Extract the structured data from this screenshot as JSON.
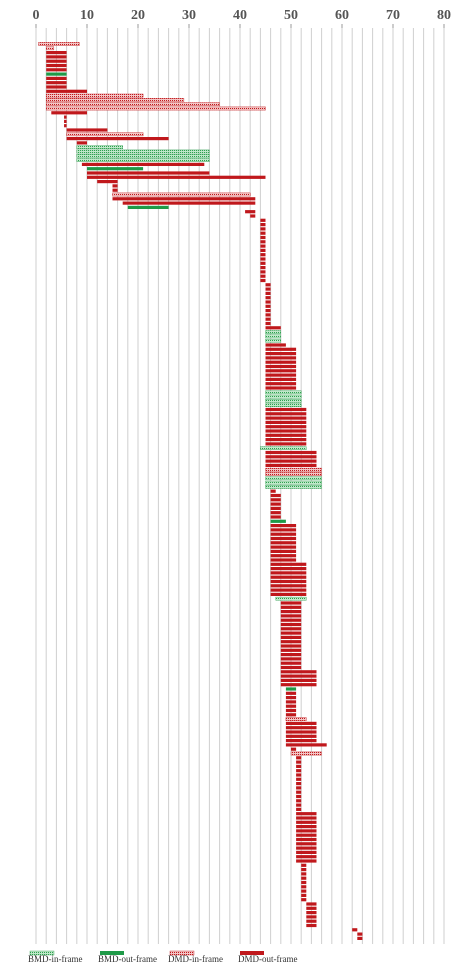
{
  "chart_data": {
    "type": "floating-bar",
    "xlim": [
      0,
      80
    ],
    "xticks": [
      0,
      10,
      20,
      30,
      40,
      50,
      60,
      70,
      80
    ],
    "grid": true,
    "grid_step": 2,
    "legend": "bottom",
    "series": [
      {
        "name": "BMD-in-frame",
        "color": "#2e9e4e",
        "pattern": "dotted",
        "rows": [
          24,
          25,
          26,
          27,
          67,
          68,
          69,
          81,
          82,
          83,
          84,
          94,
          101,
          102,
          103,
          129
        ],
        "values": [
          [
            8,
            17
          ],
          [
            8,
            34
          ],
          [
            8,
            34
          ],
          [
            8,
            34
          ],
          [
            45,
            48
          ],
          [
            45,
            48
          ],
          [
            45,
            48
          ],
          [
            45,
            52
          ],
          [
            45,
            52
          ],
          [
            45,
            52
          ],
          [
            45,
            52
          ],
          [
            44,
            53
          ],
          [
            45,
            56
          ],
          [
            45,
            56
          ],
          [
            45,
            56
          ],
          [
            47,
            53
          ]
        ]
      },
      {
        "name": "BMD-out-frame",
        "color": "#1f9a48",
        "pattern": "solid",
        "rows": [
          7,
          29,
          38,
          111,
          150
        ],
        "values": [
          [
            2,
            6
          ],
          [
            10,
            21
          ],
          [
            18,
            26
          ],
          [
            46,
            49
          ],
          [
            49,
            51
          ]
        ]
      },
      {
        "name": "DMD-in-frame",
        "color": "#c0181c",
        "pattern": "dotted",
        "rows": [
          0,
          1,
          12,
          13,
          14,
          15,
          21,
          35,
          99,
          100,
          157,
          165
        ],
        "values": [
          [
            0.5,
            8.5
          ],
          [
            2,
            3.5
          ],
          [
            2,
            21
          ],
          [
            2,
            29
          ],
          [
            2,
            36
          ],
          [
            2,
            45
          ],
          [
            6,
            21
          ],
          [
            15,
            42
          ],
          [
            45,
            56
          ],
          [
            45,
            56
          ],
          [
            49,
            53
          ],
          [
            50,
            56
          ]
        ]
      },
      {
        "name": "DMD-out-frame",
        "color": "#c0181c",
        "pattern": "solid",
        "rows": [
          2,
          3,
          4,
          5,
          6,
          8,
          9,
          10,
          11,
          16,
          17,
          18,
          19,
          20,
          22,
          23,
          28,
          30,
          31,
          32,
          33,
          34,
          36,
          37,
          39,
          40,
          41,
          42,
          43,
          44,
          45,
          46,
          47,
          48,
          49,
          50,
          51,
          52,
          53,
          54,
          55,
          56,
          57,
          58,
          59,
          60,
          61,
          62,
          63,
          64,
          65,
          66,
          70,
          71,
          72,
          73,
          74,
          75,
          76,
          77,
          78,
          79,
          80,
          85,
          86,
          87,
          88,
          89,
          90,
          91,
          92,
          93,
          95,
          96,
          97,
          98,
          104,
          105,
          106,
          107,
          108,
          109,
          110,
          112,
          113,
          114,
          115,
          116,
          117,
          118,
          119,
          120,
          121,
          122,
          123,
          124,
          125,
          126,
          127,
          128,
          130,
          131,
          132,
          133,
          134,
          135,
          136,
          137,
          138,
          139,
          140,
          141,
          142,
          143,
          144,
          145,
          146,
          147,
          148,
          149,
          151,
          152,
          153,
          154,
          155,
          156,
          158,
          159,
          160,
          161,
          162,
          163,
          164,
          166,
          167,
          168,
          169,
          170,
          171,
          172,
          173,
          174,
          175,
          176,
          177,
          178,
          179,
          180,
          181,
          182,
          183,
          184,
          185,
          186,
          187,
          188,
          189,
          190,
          191,
          192,
          193,
          194,
          195,
          196,
          197,
          198,
          199,
          200,
          201,
          202,
          203,
          204,
          205,
          206,
          207,
          208
        ],
        "values": [
          [
            2,
            6
          ],
          [
            2,
            6
          ],
          [
            2,
            6
          ],
          [
            2,
            6
          ],
          [
            2,
            6
          ],
          [
            2,
            6
          ],
          [
            2,
            6
          ],
          [
            2,
            6
          ],
          [
            2,
            10
          ],
          [
            3,
            10
          ],
          [
            5.5,
            6
          ],
          [
            5.5,
            6
          ],
          [
            5.5,
            6
          ],
          [
            6,
            14
          ],
          [
            6,
            26
          ],
          [
            8,
            10
          ],
          [
            9,
            33
          ],
          [
            10,
            34
          ],
          [
            10,
            45
          ],
          [
            12,
            16
          ],
          [
            15,
            16
          ],
          [
            15,
            16
          ],
          [
            15,
            43
          ],
          [
            17,
            43
          ],
          [
            41,
            43
          ],
          [
            42,
            43
          ],
          [
            44,
            45
          ],
          [
            44,
            45
          ],
          [
            44,
            45
          ],
          [
            44,
            45
          ],
          [
            44,
            45
          ],
          [
            44,
            45
          ],
          [
            44,
            45
          ],
          [
            44,
            45
          ],
          [
            44,
            45
          ],
          [
            44,
            45
          ],
          [
            44,
            45
          ],
          [
            44,
            45
          ],
          [
            44,
            45
          ],
          [
            44,
            45
          ],
          [
            44,
            45
          ],
          [
            45,
            46
          ],
          [
            45,
            46
          ],
          [
            45,
            46
          ],
          [
            45,
            46
          ],
          [
            45,
            46
          ],
          [
            45,
            46
          ],
          [
            45,
            46
          ],
          [
            45,
            46
          ],
          [
            45,
            46
          ],
          [
            45,
            46
          ],
          [
            45,
            48
          ],
          [
            45,
            49
          ],
          [
            45,
            51
          ],
          [
            45,
            51
          ],
          [
            45,
            51
          ],
          [
            45,
            51
          ],
          [
            45,
            51
          ],
          [
            45,
            51
          ],
          [
            45,
            51
          ],
          [
            45,
            51
          ],
          [
            45,
            51
          ],
          [
            45,
            51
          ],
          [
            45,
            53
          ],
          [
            45,
            53
          ],
          [
            45,
            53
          ],
          [
            45,
            53
          ],
          [
            45,
            53
          ],
          [
            45,
            53
          ],
          [
            45,
            53
          ],
          [
            45,
            53
          ],
          [
            45,
            53
          ],
          [
            45,
            55
          ],
          [
            45,
            55
          ],
          [
            45,
            55
          ],
          [
            45,
            55
          ],
          [
            46,
            47
          ],
          [
            46,
            48
          ],
          [
            46,
            48
          ],
          [
            46,
            48
          ],
          [
            46,
            48
          ],
          [
            46,
            48
          ],
          [
            46,
            48
          ],
          [
            46,
            51
          ],
          [
            46,
            51
          ],
          [
            46,
            51
          ],
          [
            46,
            51
          ],
          [
            46,
            51
          ],
          [
            46,
            51
          ],
          [
            46,
            51
          ],
          [
            46,
            51
          ],
          [
            46,
            51
          ],
          [
            46,
            53
          ],
          [
            46,
            53
          ],
          [
            46,
            53
          ],
          [
            46,
            53
          ],
          [
            46,
            53
          ],
          [
            46,
            53
          ],
          [
            46,
            53
          ],
          [
            46,
            53
          ],
          [
            48,
            52
          ],
          [
            48,
            52
          ],
          [
            48,
            52
          ],
          [
            48,
            52
          ],
          [
            48,
            52
          ],
          [
            48,
            52
          ],
          [
            48,
            52
          ],
          [
            48,
            52
          ],
          [
            48,
            52
          ],
          [
            48,
            52
          ],
          [
            48,
            52
          ],
          [
            48,
            52
          ],
          [
            48,
            52
          ],
          [
            48,
            52
          ],
          [
            48,
            52
          ],
          [
            48,
            52
          ],
          [
            48,
            55
          ],
          [
            48,
            55
          ],
          [
            48,
            55
          ],
          [
            48,
            55
          ],
          [
            49,
            51
          ],
          [
            49,
            51
          ],
          [
            49,
            51
          ],
          [
            49,
            51
          ],
          [
            49,
            51
          ],
          [
            49,
            51
          ],
          [
            49,
            55
          ],
          [
            49,
            55
          ],
          [
            49,
            55
          ],
          [
            49,
            55
          ],
          [
            49,
            55
          ],
          [
            49,
            57
          ],
          [
            50,
            51
          ],
          [
            51,
            52
          ],
          [
            51,
            52
          ],
          [
            51,
            52
          ],
          [
            51,
            52
          ],
          [
            51,
            52
          ],
          [
            51,
            52
          ],
          [
            51,
            52
          ],
          [
            51,
            52
          ],
          [
            51,
            52
          ],
          [
            51,
            52
          ],
          [
            51,
            52
          ],
          [
            51,
            52
          ],
          [
            51,
            52
          ],
          [
            51,
            55
          ],
          [
            51,
            55
          ],
          [
            51,
            55
          ],
          [
            51,
            55
          ],
          [
            51,
            55
          ],
          [
            51,
            55
          ],
          [
            51,
            55
          ],
          [
            51,
            55
          ],
          [
            51,
            55
          ],
          [
            51,
            55
          ],
          [
            51,
            55
          ],
          [
            51,
            55
          ],
          [
            52,
            53
          ],
          [
            52,
            53
          ],
          [
            52,
            53
          ],
          [
            52,
            53
          ],
          [
            52,
            53
          ],
          [
            52,
            53
          ],
          [
            52,
            53
          ],
          [
            52,
            53
          ],
          [
            52,
            53
          ],
          [
            53,
            55
          ],
          [
            53,
            55
          ],
          [
            53,
            55
          ],
          [
            53,
            55
          ],
          [
            53,
            55
          ],
          [
            53,
            55
          ],
          [
            62,
            63
          ],
          [
            63,
            64
          ],
          [
            63,
            64
          ]
        ]
      }
    ]
  }
}
